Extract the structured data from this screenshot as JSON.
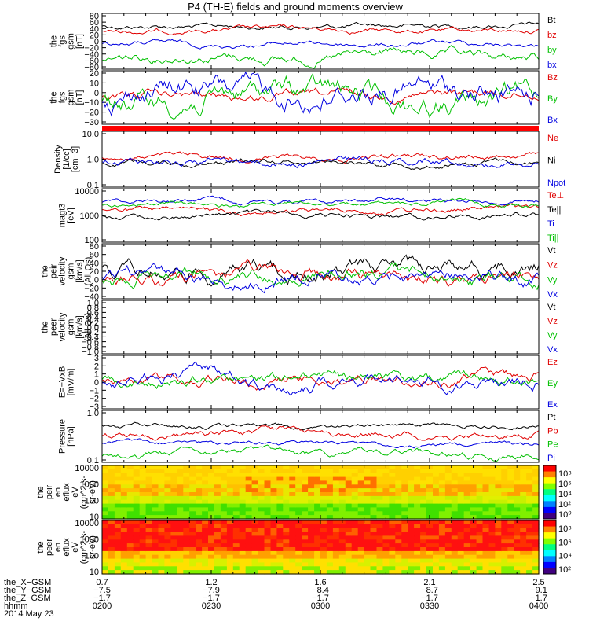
{
  "title": "P4 (TH-E) fields and ground moments overview",
  "colors": {
    "black": "#000000",
    "red": "#e00000",
    "green": "#00d000",
    "blue": "#0000e0"
  },
  "chart_data": [
    {
      "type": "line",
      "panel": "fgs_gsm_1",
      "ylabel": [
        "the",
        "fgs",
        "gsm",
        "[nT]"
      ],
      "yticks": [
        "80",
        "60",
        "40",
        "20",
        "0",
        "−20",
        "−40",
        "−60",
        "−80"
      ],
      "ylim": [
        -80,
        80
      ],
      "series": [
        {
          "name": "Bt",
          "color": "red_black",
          "base": 57,
          "amp": 6,
          "noise": 3
        },
        {
          "name": "bz",
          "base": 40,
          "amp": 4,
          "noise": 2
        },
        {
          "name": "by",
          "base": -35,
          "amp": 10,
          "noise": 3
        },
        {
          "name": "bx",
          "base": 13,
          "amp": 5,
          "noise": 2
        }
      ]
    },
    {
      "type": "line",
      "panel": "fgs_gsm_2",
      "ylabel": [
        "the",
        "fgs",
        "gsm",
        "[nT]"
      ],
      "yticks": [
        "20",
        "10",
        "0",
        "−10",
        "−20",
        "−30"
      ],
      "ylim": [
        -35,
        25
      ],
      "series": [
        {
          "name": "Bz",
          "base": -5,
          "amp": 10,
          "noise": 4
        },
        {
          "name": "By",
          "base": 5,
          "amp": 12,
          "noise": 2
        },
        {
          "name": "Bx",
          "base": 2,
          "amp": 6,
          "noise": 2
        }
      ]
    },
    {
      "type": "line",
      "panel": "density",
      "ylabel": [
        "Density",
        "[1/cc]",
        "[cm−3]"
      ],
      "yticks": [
        "10.0",
        "1.0",
        "0.1"
      ],
      "ylim": [
        0.1,
        10
      ],
      "log": true,
      "series": [
        {
          "name": "Ne",
          "base": 1.2
        },
        {
          "name": "Ni",
          "base": 0.85
        },
        {
          "name": "Npot",
          "base": 0.9
        }
      ]
    },
    {
      "type": "line",
      "panel": "temperature",
      "ylabel": [
        "magt3",
        "[eV]"
      ],
      "yticks": [
        "10000",
        "1000",
        "100"
      ],
      "ylim": [
        100,
        10000
      ],
      "log": true,
      "series": [
        {
          "name": "Te⊥",
          "base": 3200
        },
        {
          "name": "Te||",
          "base": 1800
        },
        {
          "name": "Ti⊥",
          "base": 6500
        },
        {
          "name": "Ti||",
          "base": 4200
        }
      ]
    },
    {
      "type": "line",
      "panel": "peir_velocity",
      "ylabel": [
        "the",
        "peir",
        "velocity",
        "gsm",
        "[km/s]",
        "(All Qs)"
      ],
      "yticks": [
        "80",
        "60",
        "40",
        "20",
        "0",
        "−20",
        "−40"
      ],
      "ylim": [
        -40,
        80
      ],
      "series": [
        {
          "name": "Vt"
        },
        {
          "name": "Vz"
        },
        {
          "name": "Vy"
        },
        {
          "name": "Vx"
        }
      ]
    },
    {
      "type": "line",
      "panel": "peer_velocity",
      "ylabel": [
        "the",
        "peer",
        "velocity",
        "gsm",
        "[km/s]",
        "(All Qs)"
      ],
      "yticks": [
        "1.0",
        "0.8",
        "0.6",
        "0.4",
        "0.2",
        "0.0",
        "−0.2",
        "−0.4",
        "−0.6",
        "−0.8",
        "−1.0"
      ],
      "ylim": [
        -1,
        1
      ],
      "series": [
        {
          "name": "Vt"
        },
        {
          "name": "Vz"
        },
        {
          "name": "Vy"
        },
        {
          "name": "Vx"
        }
      ]
    },
    {
      "type": "line",
      "panel": "efield",
      "ylabel": [
        "E=−VxB",
        "[mV/m]"
      ],
      "yticks": [
        "3",
        "2",
        "1",
        "0",
        "−1",
        "−2",
        "−3"
      ],
      "ylim": [
        -3,
        3
      ],
      "series": [
        {
          "name": "Ez"
        },
        {
          "name": "Ey"
        },
        {
          "name": "Ex"
        }
      ]
    },
    {
      "type": "line",
      "panel": "pressure",
      "ylabel": [
        "Pressure",
        "[nPa]"
      ],
      "yticks": [
        "1.0",
        "0.1"
      ],
      "ylim": [
        0.1,
        4
      ],
      "log": true,
      "series": [
        {
          "name": "Pt",
          "base": 1.9
        },
        {
          "name": "Pb",
          "base": 1.0
        },
        {
          "name": "Pe",
          "base": 0.22
        },
        {
          "name": "Pi",
          "base": 0.42
        }
      ]
    },
    {
      "type": "heatmap",
      "panel": "peir_eflux",
      "ylabel": [
        "the",
        "peir",
        "en",
        "eflux",
        "eV",
        "(cm^2-s-",
        "sr-eV)"
      ],
      "yticks": [
        "10000",
        "1000",
        "100",
        "10"
      ],
      "colorbar_ticks": [
        "10⁸",
        "10⁶",
        "10⁴",
        "10²",
        "10⁰"
      ]
    },
    {
      "type": "heatmap",
      "panel": "peer_eflux",
      "ylabel": [
        "the",
        "peer",
        "en",
        "eflux",
        "eV",
        "(cm^2-s-",
        "sr-eV)"
      ],
      "yticks": [
        "10000",
        "1000",
        "100",
        "10"
      ],
      "colorbar_ticks": [
        "10⁸",
        "10⁶",
        "10⁴",
        "10²"
      ]
    }
  ],
  "series_label_groups": [
    [
      [
        "Bt",
        "#000"
      ],
      [
        "bz",
        "#e00000"
      ],
      [
        "by",
        "#00c000"
      ],
      [
        "bx",
        "#0000e0"
      ]
    ],
    [
      [
        "Bz",
        "#e00000"
      ],
      [
        "By",
        "#00c000"
      ],
      [
        "Bx",
        "#0000e0"
      ]
    ],
    [
      [
        "Ne",
        "#e00000"
      ],
      [
        "Ni",
        "#000"
      ],
      [
        "Npot",
        "#0000e0"
      ]
    ],
    [
      [
        "Te⊥",
        "#e00000"
      ],
      [
        "Te||",
        "#000"
      ],
      [
        "Ti⊥",
        "#0000e0"
      ],
      [
        "Ti||",
        "#00c000"
      ]
    ],
    [
      [
        "Vt",
        "#000"
      ],
      [
        "Vz",
        "#e00000"
      ],
      [
        "Vy",
        "#00c000"
      ],
      [
        "Vx",
        "#0000e0"
      ]
    ],
    [
      [
        "Vt",
        "#000"
      ],
      [
        "Vz",
        "#e00000"
      ],
      [
        "Vy",
        "#00c000"
      ],
      [
        "Vx",
        "#0000e0"
      ]
    ],
    [
      [
        "Ez",
        "#e00000"
      ],
      [
        "Ey",
        "#00c000"
      ],
      [
        "Ex",
        "#0000e0"
      ]
    ],
    [
      [
        "Pt",
        "#000"
      ],
      [
        "Pb",
        "#e00000"
      ],
      [
        "Pe",
        "#00c000"
      ],
      [
        "Pi",
        "#0000e0"
      ]
    ]
  ],
  "xaxis": {
    "row_labels": [
      "the_X−GSM",
      "the_Y−GSM",
      "the_Z−GSM",
      "hhmm",
      "2014 May 23"
    ],
    "columns": [
      [
        "0.7",
        "−7.5",
        "−1.7",
        "0200"
      ],
      [
        "1.2",
        "−7.9",
        "−1.7",
        "0230"
      ],
      [
        "1.6",
        "−8.4",
        "−1.7",
        "0300"
      ],
      [
        "2.1",
        "−8.7",
        "−1.7",
        "0330"
      ],
      [
        "2.5",
        "−9.1",
        "−1.7",
        "0400"
      ]
    ]
  }
}
